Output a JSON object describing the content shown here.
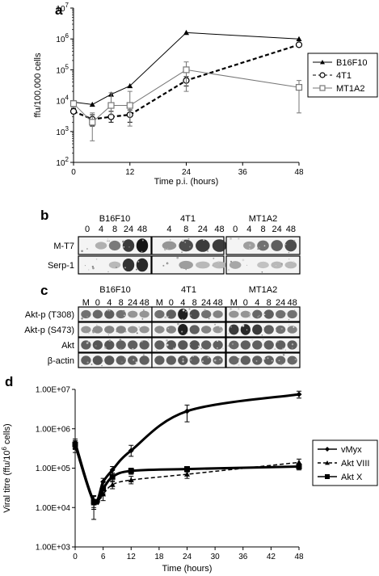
{
  "panels": {
    "a": "a",
    "b": "b",
    "c": "c",
    "d": "d"
  },
  "chart_data": [
    {
      "type": "line",
      "panel": "a",
      "xlabel": "Time p.i. (hours)",
      "ylabel": "ffu/100,000 cells",
      "xticks": [
        0,
        12,
        24,
        36,
        48
      ],
      "xlim": [
        0,
        48
      ],
      "ylim": [
        100,
        10000000
      ],
      "yscale": "log",
      "yticks": [
        {
          "value": 100,
          "base": "10",
          "exp": "2"
        },
        {
          "value": 1000,
          "base": "10",
          "exp": "3"
        },
        {
          "value": 10000,
          "base": "10",
          "exp": "4"
        },
        {
          "value": 100000,
          "base": "10",
          "exp": "5"
        },
        {
          "value": 1000000,
          "base": "10",
          "exp": "6"
        },
        {
          "value": 10000000,
          "base": "10",
          "exp": "7"
        }
      ],
      "legend_position": "right",
      "series": [
        {
          "name": "B16F10",
          "color": "#000000",
          "style": "solid",
          "marker": "triangle",
          "x": [
            0,
            4,
            8,
            12,
            24,
            48
          ],
          "y": [
            9000,
            7500,
            16000,
            30000,
            1600000,
            1000000
          ]
        },
        {
          "name": "4T1",
          "color": "#000000",
          "style": "dashed",
          "marker": "circle-open",
          "x": [
            0,
            4,
            8,
            12,
            24,
            48
          ],
          "y": [
            4500,
            2500,
            3000,
            3500,
            45000,
            650000
          ],
          "err_low": [
            3800,
            1500,
            2000,
            2000,
            30000,
            600000
          ],
          "err_high": [
            5500,
            3500,
            4500,
            5000,
            60000,
            700000
          ]
        },
        {
          "name": "MT1A2",
          "color": "#777777",
          "style": "solid",
          "marker": "square-open",
          "x": [
            0,
            4,
            8,
            12,
            24,
            48
          ],
          "y": [
            8000,
            2000,
            7000,
            7000,
            100000,
            27000
          ],
          "err_low": [
            6000,
            500,
            3500,
            1500,
            20000,
            4000
          ],
          "err_high": [
            10000,
            4000,
            18000,
            20000,
            180000,
            45000
          ]
        }
      ]
    },
    {
      "type": "line",
      "panel": "d",
      "xlabel": "Time (hours)",
      "ylabel": "Viral titre (ffu/10",
      "ylabel_sup": "6",
      "ylabel_end": " cells)",
      "xticks": [
        0,
        6,
        12,
        18,
        24,
        30,
        36,
        42,
        48
      ],
      "xlim": [
        0,
        48
      ],
      "ylim": [
        1000,
        10000000
      ],
      "yscale": "log",
      "yticks": [
        {
          "value": 1000,
          "label": "1.00E+03"
        },
        {
          "value": 10000,
          "label": "1.00E+04"
        },
        {
          "value": 100000,
          "label": "1.00E+05"
        },
        {
          "value": 1000000,
          "label": "1.00E+06"
        },
        {
          "value": 10000000,
          "label": "1.00E+07"
        }
      ],
      "legend_position": "right",
      "series": [
        {
          "name": "vMyx",
          "color": "#000000",
          "style": "solid",
          "width": 3,
          "marker": "diamond",
          "x": [
            0,
            4,
            6,
            8,
            12,
            24,
            48
          ],
          "y": [
            450000,
            15000,
            45000,
            90000,
            280000,
            2800000,
            7500000
          ],
          "err_low": [
            300000,
            10000,
            35000,
            70000,
            200000,
            1500000,
            6000000
          ],
          "err_high": [
            550000,
            20000,
            55000,
            110000,
            380000,
            4000000,
            9000000
          ]
        },
        {
          "name": "Akt VIII",
          "color": "#000000",
          "style": "dashed",
          "width": 1.5,
          "marker": "triangle",
          "x": [
            0,
            4,
            6,
            8,
            12,
            24,
            48
          ],
          "y": [
            350000,
            13000,
            22000,
            38000,
            50000,
            70000,
            140000
          ],
          "err_low": [
            250000,
            5000,
            15000,
            30000,
            40000,
            55000,
            110000
          ],
          "err_high": [
            450000,
            20000,
            30000,
            48000,
            62000,
            85000,
            170000
          ]
        },
        {
          "name": "Akt X",
          "color": "#000000",
          "style": "solid",
          "width": 3,
          "marker": "square",
          "x": [
            0,
            4,
            6,
            8,
            12,
            24,
            48
          ],
          "y": [
            400000,
            14000,
            30000,
            60000,
            85000,
            95000,
            110000
          ],
          "err_low": [
            300000,
            9000,
            22000,
            45000,
            70000,
            80000,
            90000
          ],
          "err_high": [
            500000,
            19000,
            38000,
            75000,
            100000,
            110000,
            130000
          ]
        }
      ]
    }
  ],
  "blot_b": {
    "groups": [
      {
        "name": "B16F10",
        "lanes": [
          "0",
          "4",
          "8",
          "24",
          "48"
        ]
      },
      {
        "name": "4T1",
        "lanes": [
          "4",
          "8",
          "24",
          "48"
        ]
      },
      {
        "name": "MT1A2",
        "lanes": [
          "0",
          "4",
          "8",
          "24",
          "48"
        ]
      }
    ],
    "rows": [
      "M-T7",
      "Serp-1"
    ]
  },
  "blot_c": {
    "groups": [
      {
        "name": "B16F10",
        "lanes": [
          "M",
          "0",
          "4",
          "8",
          "24",
          "48"
        ]
      },
      {
        "name": "4T1",
        "lanes": [
          "M",
          "0",
          "4",
          "8",
          "24",
          "48"
        ]
      },
      {
        "name": "MT1A2",
        "lanes": [
          "M",
          "0",
          "4",
          "8",
          "24",
          "48"
        ]
      }
    ],
    "rows": [
      "Akt-p (T308)",
      "Akt-p (S473)",
      "Akt",
      "β-actin"
    ]
  }
}
